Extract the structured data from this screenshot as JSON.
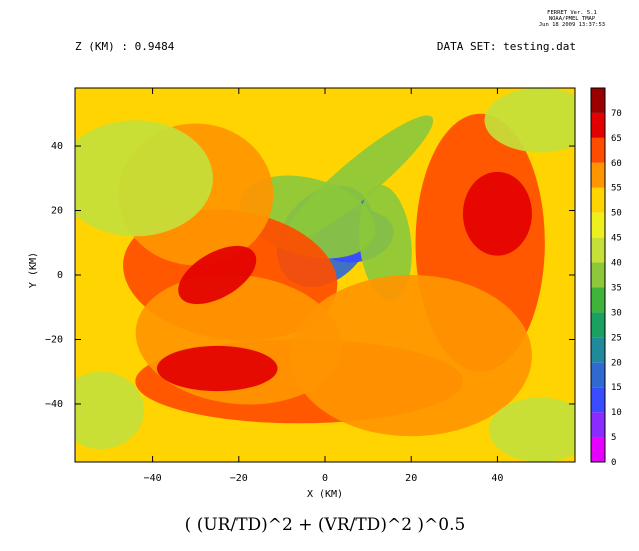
{
  "header": {
    "ferret_lines": [
      "FERRET Ver. 5.1",
      "NOAA/PMEL TMAP",
      "Jun 18 2009 13:37:53"
    ],
    "z_label": "Z (KM) : 0.9484",
    "dataset_label": "DATA SET: testing.dat"
  },
  "chart_data": {
    "type": "heatmap",
    "title": "( (UR/TD)^2 + (VR/TD)^2 )^0.5",
    "xlabel": "X (KM)",
    "ylabel": "Y (KM)",
    "xlim": [
      -58,
      58
    ],
    "ylim": [
      -58,
      58
    ],
    "x_ticks": [
      -40,
      -20,
      0,
      20,
      40
    ],
    "x_tick_labels": [
      "−40",
      "−20",
      "0",
      "20",
      "40"
    ],
    "y_ticks": [
      40,
      20,
      0,
      -20,
      -40
    ],
    "y_tick_labels": [
      "40",
      "20",
      "0",
      "−20",
      "−40"
    ],
    "color_levels": [
      0,
      5,
      10,
      15,
      20,
      25,
      30,
      35,
      40,
      45,
      50,
      55,
      60,
      65,
      70
    ],
    "color_level_labels": [
      "0",
      "5",
      "10",
      "15",
      "20",
      "25",
      "30",
      "35",
      "40",
      "45",
      "50",
      "55",
      "60",
      "65",
      "70"
    ],
    "colors": [
      "#e600ff",
      "#8a2cff",
      "#3a4cff",
      "#2f6ad0",
      "#1e8a9a",
      "#1aa060",
      "#3fb33a",
      "#8cc83a",
      "#c6e03a",
      "#eef01e",
      "#ffd400",
      "#ff9500",
      "#ff4d00",
      "#e30000",
      "#9a0000"
    ],
    "grid": false,
    "features": [
      {
        "x": 0,
        "y": 12,
        "sx": 13,
        "sy": 13,
        "a": -50
      },
      {
        "x": 7,
        "y": 12,
        "sx": 9,
        "sy": 8,
        "a": -10
      },
      {
        "x": 8,
        "y": 30,
        "sx": 22,
        "sy": 6,
        "a": -40
      },
      {
        "x": 14,
        "y": 10,
        "sx": 6,
        "sy": 18,
        "a": -6
      },
      {
        "x": -4,
        "y": 18,
        "sx": 16,
        "sy": 12,
        "a": 15
      },
      {
        "x": -22,
        "y": 0,
        "sx": 25,
        "sy": 20,
        "a": 8
      },
      {
        "x": -6,
        "y": -33,
        "sx": 38,
        "sy": 13,
        "a": 0
      },
      {
        "x": 36,
        "y": 10,
        "sx": 15,
        "sy": 40,
        "a": 0
      },
      {
        "x": -30,
        "y": 25,
        "sx": 18,
        "sy": 22,
        "a": 0
      },
      {
        "x": -20,
        "y": -20,
        "sx": 24,
        "sy": 20,
        "a": 6
      },
      {
        "x": 20,
        "y": -25,
        "sx": 28,
        "sy": 25,
        "a": 0
      },
      {
        "x": -25,
        "y": 0,
        "sx": 10,
        "sy": 7,
        "a": -30
      },
      {
        "x": -25,
        "y": -29,
        "sx": 14,
        "sy": 7,
        "a": 0
      },
      {
        "x": 40,
        "y": 19,
        "sx": 8,
        "sy": 13,
        "a": 0
      },
      {
        "x": -44,
        "y": 30,
        "sx": 18,
        "sy": 18,
        "a": 0
      },
      {
        "x": -52,
        "y": -42,
        "sx": 10,
        "sy": 12,
        "a": 0
      },
      {
        "x": 50,
        "y": -48,
        "sx": 12,
        "sy": 10,
        "a": 0
      },
      {
        "x": 50,
        "y": 48,
        "sx": 13,
        "sy": 10,
        "a": 0
      }
    ]
  }
}
